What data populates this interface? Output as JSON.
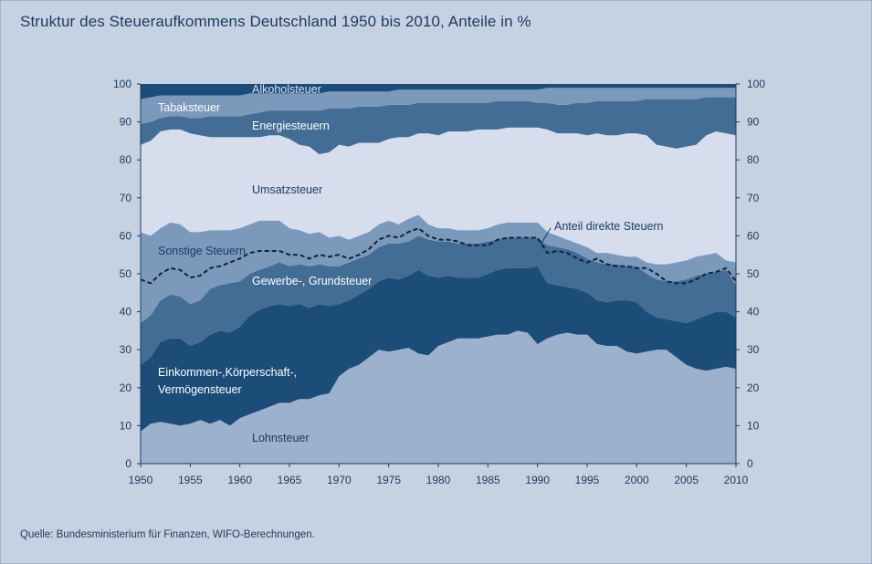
{
  "title": "Struktur des Steueraufkommens Deutschland 1950 bis 2010, Anteile in %",
  "source": "Quelle: Bundesministerium für Finanzen, WIFO-Berechnungen.",
  "colors": {
    "background": "#c6d2e2",
    "lohnsteuer": "#9cb1cd",
    "einkommen": "#1c4d79",
    "gewerbe": "#436d95",
    "sonstige": "#7b99bb",
    "umsatz": "#d6dded",
    "energie": "#436d95",
    "tabak": "#7b99bb",
    "alkohol": "#1c4d79",
    "text_dark": "#1b3a5e"
  },
  "chart_data": {
    "type": "area",
    "x": [
      1950,
      1951,
      1952,
      1953,
      1954,
      1955,
      1956,
      1957,
      1958,
      1959,
      1960,
      1961,
      1962,
      1963,
      1964,
      1965,
      1966,
      1967,
      1968,
      1969,
      1970,
      1971,
      1972,
      1973,
      1974,
      1975,
      1976,
      1977,
      1978,
      1979,
      1980,
      1981,
      1982,
      1983,
      1984,
      1985,
      1986,
      1987,
      1988,
      1989,
      1990,
      1991,
      1992,
      1993,
      1994,
      1995,
      1996,
      1997,
      1998,
      1999,
      2000,
      2001,
      2002,
      2003,
      2004,
      2005,
      2006,
      2007,
      2008,
      2009,
      2010
    ],
    "xlim": [
      1950,
      2010
    ],
    "ylim": [
      0,
      100
    ],
    "x_ticks": [
      1950,
      1955,
      1960,
      1965,
      1970,
      1975,
      1980,
      1985,
      1990,
      1995,
      2000,
      2005,
      2010
    ],
    "y_ticks": [
      0,
      10,
      20,
      30,
      40,
      50,
      60,
      70,
      80,
      90,
      100
    ],
    "stacked_boundaries_description": "Cumulative upper boundaries of the stacked layers (in %, bottom to top)",
    "series": [
      {
        "name": "Lohnsteuer",
        "upper": [
          8.5,
          10.5,
          11,
          10.5,
          10,
          10.5,
          11.5,
          10.5,
          11.5,
          10,
          12,
          13,
          14,
          15,
          16,
          16,
          17,
          17,
          18,
          18.5,
          23,
          25,
          26,
          28,
          30,
          29.5,
          30,
          30.5,
          29,
          28.5,
          31,
          32,
          33,
          33,
          33,
          33.5,
          34,
          34,
          35,
          34.5,
          31.5,
          33,
          34,
          34.5,
          34,
          34,
          31.5,
          31,
          31,
          29.5,
          29,
          29.5,
          30,
          30,
          28,
          26,
          25,
          24.5,
          25,
          25.5,
          25
        ]
      },
      {
        "name": "Einkommen-,Körperschaft-, Vermögensteuer",
        "upper": [
          26,
          28,
          32,
          33,
          33,
          31,
          32,
          34,
          35,
          34.5,
          36,
          39,
          40.5,
          41.5,
          42,
          41.5,
          42,
          41,
          42,
          41.5,
          42,
          43,
          44.5,
          46,
          48,
          49,
          48.5,
          49.5,
          51,
          49.5,
          49,
          49.5,
          49,
          49,
          49,
          50,
          51,
          51.5,
          51.5,
          51.5,
          52,
          47.5,
          47,
          46.5,
          46,
          45,
          43,
          42.5,
          43,
          43,
          42.5,
          40,
          38.5,
          38,
          37.5,
          37,
          38,
          39,
          40,
          40,
          38.5
        ]
      },
      {
        "name": "Gewerbe-, Grundsteuer",
        "upper": [
          37,
          39,
          43,
          44.5,
          44,
          42,
          43,
          46,
          47,
          47.5,
          48,
          50,
          51,
          52,
          53,
          52,
          52.5,
          52,
          52.5,
          52,
          52,
          53,
          54,
          55,
          57,
          58,
          58,
          58.5,
          60,
          59,
          58.5,
          58.5,
          58,
          58,
          58,
          58.5,
          59,
          59.5,
          59.5,
          59.5,
          59.5,
          57.5,
          57,
          56.5,
          55.5,
          54,
          53,
          52.5,
          52.5,
          52,
          52,
          50,
          48.5,
          48,
          48,
          48.5,
          49.5,
          50,
          50.5,
          51,
          47
        ]
      },
      {
        "name": "Sonstige Steuern",
        "upper": [
          61,
          60,
          62,
          63.5,
          63,
          61,
          61,
          61.5,
          61.5,
          61.5,
          62,
          63,
          64,
          64,
          64,
          62,
          61.5,
          60.5,
          61,
          59.5,
          60,
          59,
          60,
          61,
          63,
          64,
          63,
          64.5,
          65.5,
          63,
          62,
          62,
          61.5,
          61.5,
          61.5,
          62,
          63,
          63.5,
          63.5,
          63.5,
          63.5,
          61,
          60,
          59,
          58,
          57,
          55.5,
          55.5,
          55,
          54.5,
          54.5,
          53,
          52.5,
          52.5,
          53,
          53.5,
          54.5,
          55,
          55.5,
          53.5,
          53
        ]
      },
      {
        "name": "Umsatzsteuer",
        "upper": [
          84,
          85,
          87.5,
          88,
          88,
          87,
          86.5,
          86,
          86,
          86,
          86,
          86,
          86,
          86.5,
          86.5,
          85.5,
          84,
          83.5,
          81.5,
          82,
          84,
          83.5,
          84.5,
          84.5,
          84.5,
          85.5,
          86,
          86,
          87,
          87,
          86.5,
          87.5,
          87.5,
          87.5,
          88,
          88,
          88,
          88.5,
          88.5,
          88.5,
          88.5,
          88,
          87,
          87,
          87,
          86.5,
          87,
          86.5,
          86.5,
          87,
          87,
          86.5,
          84,
          83.5,
          83,
          83.5,
          84,
          86.5,
          87.5,
          87,
          86.5
        ]
      },
      {
        "name": "Energiesteuern",
        "upper": [
          89.5,
          90,
          91,
          91.5,
          91.5,
          91,
          91,
          91.5,
          91.5,
          91.5,
          91.5,
          92,
          92.5,
          93,
          93,
          93,
          93,
          93,
          93,
          93.5,
          93.5,
          93.5,
          94,
          94,
          94,
          94.5,
          94.5,
          94.5,
          95,
          95,
          95,
          95,
          95,
          95,
          95,
          95,
          95.5,
          95.5,
          95.5,
          95.5,
          95,
          95,
          94.5,
          94.5,
          95,
          95,
          95.5,
          95.5,
          95.5,
          95.5,
          95.5,
          96,
          96,
          96,
          96,
          96,
          96,
          96.5,
          96.5,
          96.5,
          96.5
        ]
      },
      {
        "name": "Tabaksteuer",
        "upper": [
          96,
          96.5,
          97,
          97,
          97,
          97,
          97,
          97,
          97,
          97,
          97,
          97.5,
          97.5,
          97.5,
          97.5,
          97.5,
          97.5,
          97.5,
          97.5,
          98,
          98,
          98,
          98,
          98,
          98,
          98,
          98.5,
          98.5,
          98.5,
          98.5,
          98.5,
          98.5,
          98.5,
          98.5,
          98.5,
          98.5,
          98.5,
          98.5,
          98.5,
          98.5,
          98.5,
          99,
          99,
          99,
          99,
          99,
          99,
          99,
          99,
          99,
          99,
          99,
          99,
          99,
          99,
          99,
          99,
          99,
          99,
          99,
          99
        ]
      },
      {
        "name": "Alkoholsteuer",
        "upper": [
          100,
          100,
          100,
          100,
          100,
          100,
          100,
          100,
          100,
          100,
          100,
          100,
          100,
          100,
          100,
          100,
          100,
          100,
          100,
          100,
          100,
          100,
          100,
          100,
          100,
          100,
          100,
          100,
          100,
          100,
          100,
          100,
          100,
          100,
          100,
          100,
          100,
          100,
          100,
          100,
          100,
          100,
          100,
          100,
          100,
          100,
          100,
          100,
          100,
          100,
          100,
          100,
          100,
          100,
          100,
          100,
          100,
          100,
          100,
          100,
          100
        ]
      }
    ],
    "line_series": {
      "name": "Anteil direkte Steuern",
      "style": "dashed",
      "values": [
        48.5,
        47.5,
        50,
        51.5,
        51,
        49,
        49.5,
        51.5,
        52,
        53,
        54,
        55.5,
        56,
        56,
        56,
        55,
        55,
        54,
        55,
        54.5,
        55,
        54,
        55,
        56.5,
        59,
        60,
        59.5,
        61,
        62,
        60,
        59,
        59,
        58.5,
        57.5,
        57.5,
        57.5,
        59,
        59.5,
        59.5,
        59.5,
        59.5,
        55.5,
        56,
        55.5,
        54,
        53,
        54,
        52.5,
        52,
        52,
        51.5,
        51.5,
        50,
        48,
        47.5,
        47.5,
        48.5,
        50,
        50.5,
        51.5,
        48
      ]
    },
    "layer_labels": [
      "Alkoholsteuer",
      "Tabaksteuer",
      "Energiesteuern",
      "Umsatzsteuer",
      "Sonstige Steuern",
      "Gewerbe-, Grundsteuer",
      "Einkommen-,Körperschaft-,",
      "Vermögensteuer",
      "Lohnsteuer"
    ],
    "line_label": "Anteil direkte Steuern",
    "right_axis_mirrors_left": true,
    "grid": false
  }
}
